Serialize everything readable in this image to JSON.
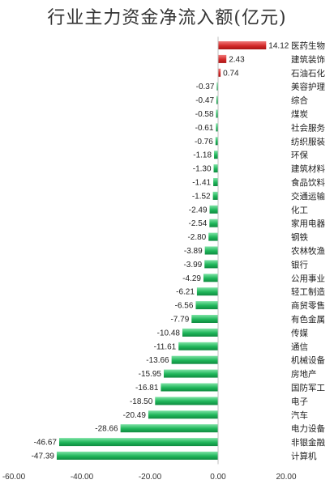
{
  "title": "行业主力资金净流入额(亿元)",
  "chart_data": {
    "type": "bar",
    "orientation": "horizontal",
    "title": "行业主力资金净流入额(亿元)",
    "xlabel": "",
    "ylabel": "",
    "xlim": [
      -60,
      20
    ],
    "x_ticks": [
      "-60.00",
      "-40.00",
      "-20.00",
      "0.00",
      "20.00"
    ],
    "grid": false,
    "legend": "none",
    "colors": {
      "positive": "#d42b2b",
      "negative": "#1fb65a"
    },
    "categories": [
      "医药生物",
      "建筑装饰",
      "石油石化",
      "美容护理",
      "综合",
      "煤炭",
      "社会服务",
      "纺织服装",
      "环保",
      "建筑材料",
      "食品饮料",
      "交通运输",
      "化工",
      "家用电器",
      "钢铁",
      "农林牧渔",
      "银行",
      "公用事业",
      "轻工制造",
      "商贸零售",
      "有色金属",
      "传媒",
      "通信",
      "机械设备",
      "房地产",
      "国防军工",
      "电子",
      "汽车",
      "电力设备",
      "非银金融",
      "计算机"
    ],
    "values": [
      14.12,
      2.43,
      0.74,
      -0.37,
      -0.47,
      -0.58,
      -0.61,
      -0.76,
      -1.18,
      -1.3,
      -1.41,
      -1.52,
      -2.49,
      -2.54,
      -2.8,
      -3.89,
      -3.99,
      -4.29,
      -6.21,
      -6.56,
      -7.79,
      -10.48,
      -11.61,
      -13.66,
      -15.95,
      -16.81,
      -18.5,
      -20.49,
      -28.66,
      -46.67,
      -47.39
    ],
    "value_labels": [
      "14.12",
      "2.43",
      "0.74",
      "-0.37",
      "-0.47",
      "-0.58",
      "-0.61",
      "-0.76",
      "-1.18",
      "-1.30",
      "-1.41",
      "-1.52",
      "-2.49",
      "-2.54",
      "-2.80",
      "-3.89",
      "-3.99",
      "-4.29",
      "-6.21",
      "-6.56",
      "-7.79",
      "-10.48",
      "-11.61",
      "-13.66",
      "-15.95",
      "-16.81",
      "-18.50",
      "-20.49",
      "-28.66",
      "-46.67",
      "-47.39"
    ]
  }
}
